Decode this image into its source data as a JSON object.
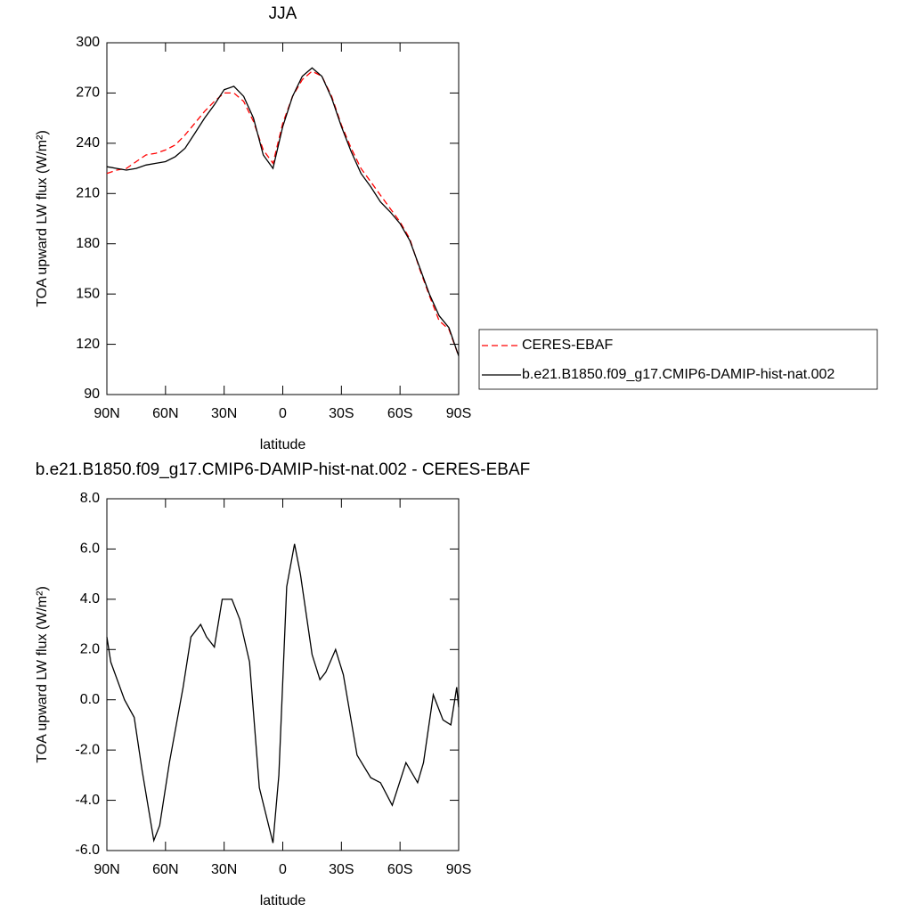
{
  "chart_data": [
    {
      "type": "line",
      "title": "JJA",
      "xlabel": "latitude",
      "ylabel": "TOA upward LW flux (W/m²)",
      "x": [
        90,
        85,
        80,
        75,
        70,
        65,
        60,
        55,
        50,
        45,
        40,
        35,
        30,
        25,
        20,
        15,
        10,
        5,
        0,
        -5,
        -10,
        -15,
        -20,
        -25,
        -30,
        -35,
        -40,
        -45,
        -50,
        -55,
        -60,
        -65,
        -70,
        -75,
        -80,
        -85,
        -90
      ],
      "series": [
        {
          "name": "CERES-EBAF",
          "color": "#ff0000",
          "dash": true,
          "values": [
            222,
            224,
            225,
            229,
            233,
            234,
            236,
            239,
            245,
            252,
            259,
            265,
            270,
            270,
            265,
            253,
            236,
            228,
            252,
            268,
            278,
            283,
            280,
            268,
            251,
            237,
            225,
            217,
            209,
            201,
            193,
            183,
            165,
            149,
            134,
            129,
            113
          ]
        },
        {
          "name": "b.e21.B1850.f09_g17.CMIP6-DAMIP-hist-nat.002",
          "color": "#000000",
          "dash": false,
          "values": [
            226,
            225,
            224,
            225,
            227,
            228,
            229,
            232,
            237,
            246,
            255,
            263,
            272,
            274,
            268,
            255,
            233,
            225,
            250,
            268,
            280,
            285,
            280,
            267,
            250,
            235,
            222,
            214,
            205,
            199,
            192,
            182,
            166,
            150,
            137,
            130,
            113
          ]
        }
      ],
      "xlim": [
        90,
        -90
      ],
      "ylim": [
        90,
        300
      ],
      "xticks": [
        {
          "value": 90,
          "label": "90N"
        },
        {
          "value": 60,
          "label": "60N"
        },
        {
          "value": 30,
          "label": "30N"
        },
        0,
        {
          "value": -30,
          "label": "30S"
        },
        {
          "value": -60,
          "label": "60S"
        },
        {
          "value": -90,
          "label": "90S"
        }
      ],
      "yticks": [
        90,
        120,
        150,
        180,
        210,
        240,
        270,
        300
      ],
      "legend": "outside-right"
    },
    {
      "type": "line",
      "title": "b.e21.B1850.f09_g17.CMIP6-DAMIP-hist-nat.002 - CERES-EBAF",
      "xlabel": "latitude",
      "ylabel": "TOA upward LW flux (W/m²)",
      "x": [
        90,
        88,
        81,
        76,
        72,
        66,
        63,
        58,
        51,
        47,
        42,
        39,
        35,
        31,
        26,
        22,
        17,
        12,
        5,
        2,
        -2,
        -6,
        -9,
        -15,
        -19,
        -22,
        -27,
        -31,
        -38,
        -45,
        -50,
        -56,
        -63,
        -69,
        -72,
        -77,
        -82,
        -86,
        -89,
        -90
      ],
      "series": [
        {
          "color": "#000000",
          "dash": false,
          "values": [
            2.5,
            1.5,
            0.0,
            -0.7,
            -2.8,
            -5.6,
            -5.0,
            -2.5,
            0.5,
            2.5,
            3.0,
            2.5,
            2.1,
            4.0,
            4.0,
            3.2,
            1.5,
            -3.5,
            -5.7,
            -3.0,
            4.5,
            6.2,
            5.0,
            1.8,
            0.8,
            1.1,
            2.0,
            1.0,
            -2.2,
            -3.1,
            -3.3,
            -4.2,
            -2.5,
            -3.3,
            -2.5,
            0.2,
            -0.8,
            -1.0,
            0.5,
            -0.3
          ]
        }
      ],
      "xlim": [
        90,
        -90
      ],
      "ylim": [
        -6,
        8
      ],
      "xticks": [
        {
          "value": 90,
          "label": "90N"
        },
        {
          "value": 60,
          "label": "60N"
        },
        {
          "value": 30,
          "label": "30N"
        },
        0,
        {
          "value": -30,
          "label": "30S"
        },
        {
          "value": -60,
          "label": "60S"
        },
        {
          "value": -90,
          "label": "90S"
        }
      ],
      "yticks": [
        {
          "value": -6,
          "label": "-6.0"
        },
        {
          "value": -4,
          "label": "-4.0"
        },
        {
          "value": -2,
          "label": "-2.0"
        },
        {
          "value": 0,
          "label": "0.0"
        },
        {
          "value": 2,
          "label": "2.0"
        },
        {
          "value": 4,
          "label": "4.0"
        },
        {
          "value": 6,
          "label": "6.0"
        },
        {
          "value": 8,
          "label": "8.0"
        }
      ]
    }
  ]
}
